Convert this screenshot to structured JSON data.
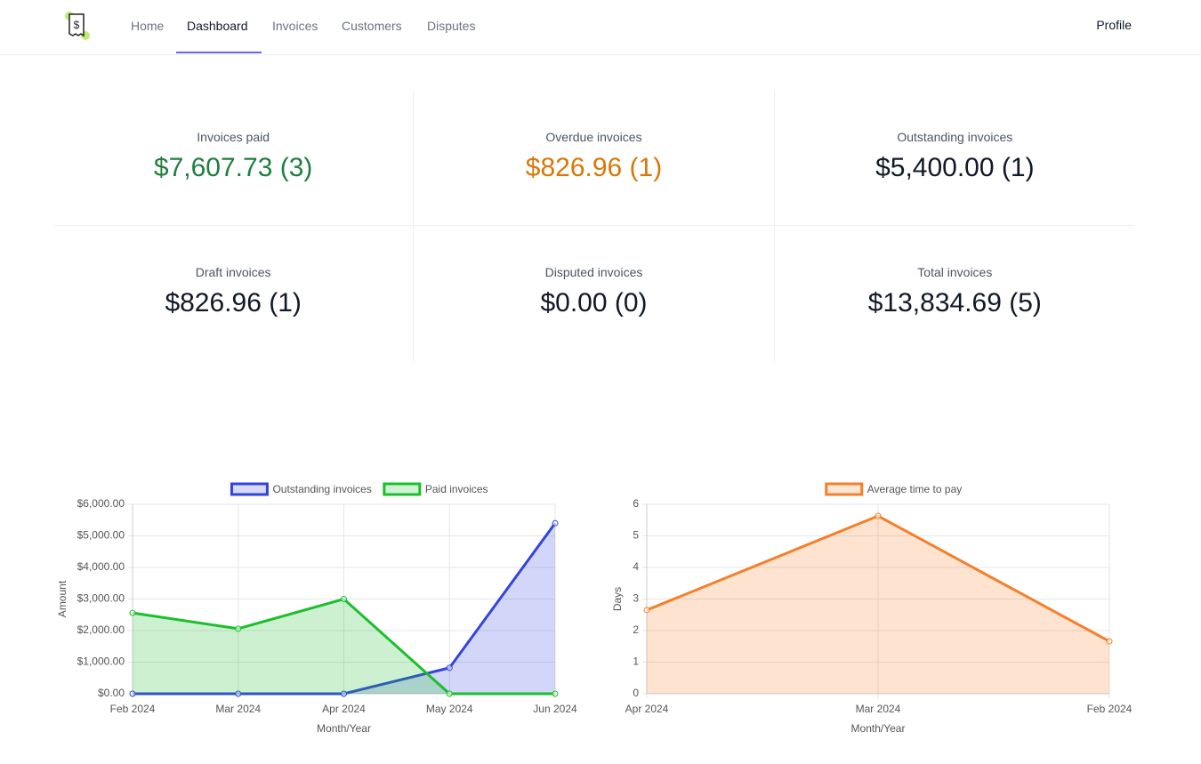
{
  "nav": {
    "items": [
      "Home",
      "Dashboard",
      "Invoices",
      "Customers",
      "Disputes"
    ],
    "active": 1,
    "profile": "Profile"
  },
  "stats": [
    {
      "label": "Invoices paid",
      "value": "$7,607.73 (3)",
      "color": "#1e7e3e"
    },
    {
      "label": "Overdue invoices",
      "value": "$826.96 (1)",
      "color": "#d97706"
    },
    {
      "label": "Outstanding invoices",
      "value": "$5,400.00 (1)",
      "color": "#111827"
    },
    {
      "label": "Draft invoices",
      "value": "$826.96 (1)",
      "color": "#111827"
    },
    {
      "label": "Disputed invoices",
      "value": "$0.00 (0)",
      "color": "#111827"
    },
    {
      "label": "Total invoices",
      "value": "$13,834.69 (5)",
      "color": "#111827"
    }
  ],
  "chart_data": [
    {
      "type": "line",
      "xlabel": "Month/Year",
      "ylabel": "Amount",
      "categories": [
        "Feb 2024",
        "Mar 2024",
        "Apr 2024",
        "May 2024",
        "Jun 2024"
      ],
      "series": [
        {
          "name": "Outstanding invoices",
          "color": "#3344dd",
          "values": [
            0,
            0,
            0,
            820,
            5400
          ]
        },
        {
          "name": "Paid invoices",
          "color": "#1bbf2b",
          "values": [
            2560,
            2060,
            3000,
            0,
            0
          ]
        }
      ],
      "ylim": [
        0,
        6000
      ],
      "yticks": [
        {
          "value": 0,
          "label": "$0.00"
        },
        {
          "value": 1000,
          "label": "$1,000.00"
        },
        {
          "value": 2000,
          "label": "$2,000.00"
        },
        {
          "value": 3000,
          "label": "$3,000.00"
        },
        {
          "value": 4000,
          "label": "$4,000.00"
        },
        {
          "value": 5000,
          "label": "$5,000.00"
        },
        {
          "value": 6000,
          "label": "$6,000.00"
        }
      ],
      "grid": true
    },
    {
      "type": "line",
      "xlabel": "Month/Year",
      "ylabel": "Days",
      "categories": [
        "Apr 2024",
        "Mar 2024",
        "Feb 2024"
      ],
      "series": [
        {
          "name": "Average time to pay",
          "color": "#f57f2a",
          "values": [
            2.65,
            5.63,
            1.66
          ]
        }
      ],
      "ylim": [
        0,
        6
      ],
      "yticks": [
        0,
        1,
        2,
        3,
        4,
        5,
        6
      ],
      "grid": true
    }
  ]
}
